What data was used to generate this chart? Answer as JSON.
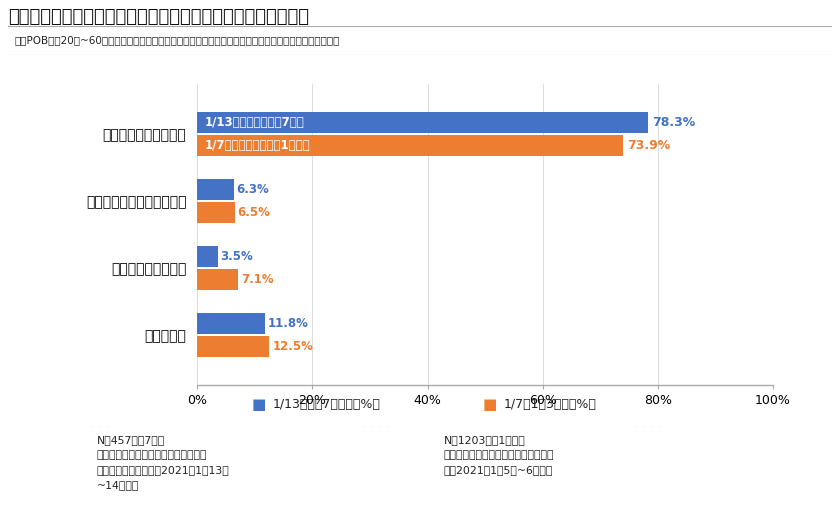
{
  "title": "図表１）再発令された緊急事態宣言についてどう思いますか？",
  "subtitle": "全国POB会員20代~60代以上男女　調査方法：インターネットリサーチ　ソフトブレーン・フィールド調べ",
  "categories": [
    "速やかに発令すべきだ",
    "もう少し様子をみるべきだ",
    "発令すべきではない",
    "わからない"
  ],
  "values_blue": [
    78.3,
    6.3,
    3.5,
    11.8
  ],
  "values_orange": [
    73.9,
    6.5,
    7.1,
    12.5
  ],
  "labels_blue": [
    "78.3%",
    "6.3%",
    "3.5%",
    "11.8%"
  ],
  "labels_orange": [
    "73.9%",
    "6.5%",
    "7.1%",
    "12.5%"
  ],
  "bar_label_blue_0": "1/13緊急事態宣言　7府県",
  "bar_label_orange_0": "1/7緊急事態宣言　　1都３県",
  "color_blue": "#4472C4",
  "color_orange": "#ED7D31",
  "legend_blue_square": "■",
  "legend_blue_text": "1/13追加　7府県　（%）",
  "legend_orange_square": "■",
  "legend_orange_text": "1/7　1都3県　（%）",
  "note_left_line1": "N＝457人、7府県",
  "note_left_line2": "（栃木・岐阜・愛知・京都・大阪・兵",
  "note_left_line3": "庫・福岡在住の会員）2021年1月13日",
  "note_left_line4": "~14日調査",
  "note_right_line1": "N＝1203人、1都３県",
  "note_right_line2": "（東京・千葉・埼玉・神奈川在住の会",
  "note_right_line3": "員）2021年1月5日~6日調査",
  "xlim": [
    0,
    100
  ],
  "xticks": [
    0,
    20,
    40,
    60,
    80,
    100
  ],
  "xticklabels": [
    "0%",
    "20%",
    "40%",
    "60%",
    "80%",
    "100%"
  ],
  "background_color": "#FFFFFF",
  "bar_height": 0.32,
  "fig_width": 8.4,
  "fig_height": 5.24
}
